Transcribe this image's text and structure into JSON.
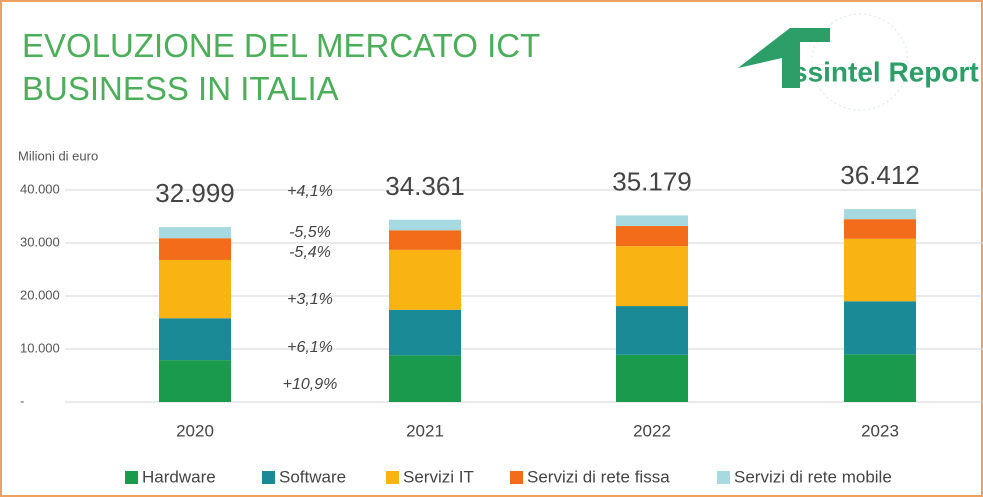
{
  "chart_data": {
    "type": "stacked_bar",
    "title": [
      "EVOLUZIONE DEL MERCATO ICT",
      "BUSINESS IN ITALIA"
    ],
    "logo_text": "ssintel Report",
    "y_label": "Milioni di euro",
    "categories": [
      "2020",
      "2021",
      "2022",
      "2023"
    ],
    "series": [
      {
        "name": "Hardware",
        "color": "#1a9a4c",
        "values": [
          7900,
          8800,
          8900,
          9000
        ]
      },
      {
        "name": "Software",
        "color": "#1b8a97",
        "values": [
          7900,
          8600,
          9200,
          10000
        ]
      },
      {
        "name": "Servizi IT",
        "color": "#f9b312",
        "values": [
          11000,
          11300,
          11300,
          11800
        ]
      },
      {
        "name": "Servizi di rete fissa",
        "color": "#f26c1a",
        "values": [
          4100,
          3700,
          3800,
          3700
        ]
      },
      {
        "name": "Servizi di rete mobile",
        "color": "#a6d9e0",
        "values": [
          2100,
          2000,
          2000,
          1900
        ]
      }
    ],
    "totals": [
      {
        "value": 32999,
        "label": "32.999"
      },
      {
        "value": 34361,
        "label": "34.361"
      },
      {
        "value": 35179,
        "label": "35.179"
      },
      {
        "value": 36412,
        "label": "36.412"
      }
    ],
    "annotations": [
      "+4,1%",
      "-5,5%",
      "-5,4%",
      "+3,1%",
      "+6,1%",
      "+10,9%"
    ],
    "ylim": [
      0,
      40000
    ],
    "yticks": [
      {
        "value": 0,
        "label": "-"
      },
      {
        "value": 10000,
        "label": "10.000"
      },
      {
        "value": 20000,
        "label": "20.000"
      },
      {
        "value": 30000,
        "label": "30.000"
      },
      {
        "value": 40000,
        "label": "40.000"
      }
    ],
    "grid": true
  }
}
